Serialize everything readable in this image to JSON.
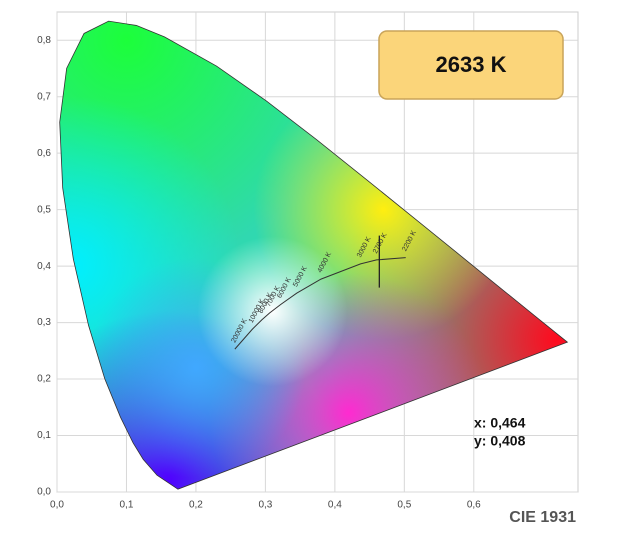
{
  "chart_data": {
    "type": "chromaticity",
    "title": "CIE 1931",
    "badge": "2633 K",
    "readout": [
      "x: 0,464",
      "y: 0,408"
    ],
    "point": {
      "x": 0.464,
      "y": 0.408
    },
    "xlim": [
      0,
      0.75
    ],
    "ylim": [
      0,
      0.85
    ],
    "xticks": [
      {
        "value": 0,
        "label": "0,0"
      },
      {
        "value": 0.1,
        "label": "0,1"
      },
      {
        "value": 0.2,
        "label": "0,2"
      },
      {
        "value": 0.3,
        "label": "0,3"
      },
      {
        "value": 0.4,
        "label": "0,4"
      },
      {
        "value": 0.5,
        "label": "0,5"
      },
      {
        "value": 0.6,
        "label": "0,6"
      }
    ],
    "yticks": [
      {
        "value": 0,
        "label": "0,0"
      },
      {
        "value": 0.1,
        "label": "0,1"
      },
      {
        "value": 0.2,
        "label": "0,2"
      },
      {
        "value": 0.3,
        "label": "0,3"
      },
      {
        "value": 0.4,
        "label": "0,4"
      },
      {
        "value": 0.5,
        "label": "0,5"
      },
      {
        "value": 0.6,
        "label": "0,6"
      },
      {
        "value": 0.7,
        "label": "0,7"
      },
      {
        "value": 0.8,
        "label": "0,8"
      }
    ],
    "grid": true,
    "spectral_locus": {
      "x": [
        0.1741,
        0.144,
        0.1241,
        0.1096,
        0.0913,
        0.0687,
        0.0454,
        0.0235,
        0.0082,
        0.0039,
        0.0139,
        0.0389,
        0.0743,
        0.1142,
        0.1547,
        0.2296,
        0.3016,
        0.3731,
        0.4441,
        0.5125,
        0.5752,
        0.627,
        0.6915,
        0.7347
      ],
      "y": [
        0.005,
        0.0297,
        0.0578,
        0.0868,
        0.1327,
        0.2007,
        0.295,
        0.4127,
        0.5384,
        0.6548,
        0.7502,
        0.812,
        0.8338,
        0.8262,
        0.8059,
        0.7543,
        0.6923,
        0.6245,
        0.5547,
        0.4866,
        0.4242,
        0.3725,
        0.3083,
        0.2653
      ]
    },
    "planckian_locus": {
      "labels": [
        "2200 K",
        "2700 K",
        "3000 K",
        "4000 K",
        "5000 K",
        "6000 K",
        "7000 K",
        "8000 K",
        "10000 K",
        "20000 K"
      ],
      "x": [
        0.502,
        0.46,
        0.437,
        0.38,
        0.345,
        0.322,
        0.306,
        0.295,
        0.281,
        0.256
      ],
      "y": [
        0.415,
        0.411,
        0.404,
        0.377,
        0.352,
        0.332,
        0.317,
        0.305,
        0.288,
        0.253
      ]
    }
  }
}
